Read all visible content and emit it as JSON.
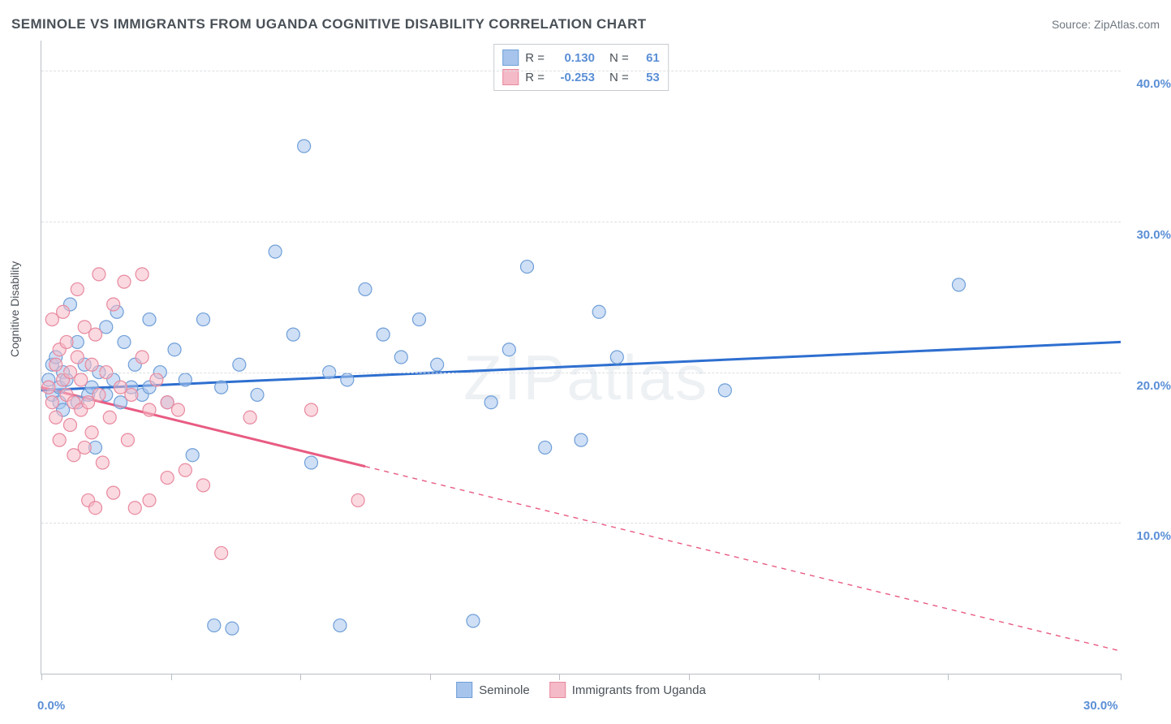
{
  "header": {
    "title": "SEMINOLE VS IMMIGRANTS FROM UGANDA COGNITIVE DISABILITY CORRELATION CHART",
    "source_label": "Source:",
    "source_name": "ZipAtlas.com"
  },
  "watermark": "ZIPatlas",
  "chart": {
    "type": "scatter",
    "ylabel": "Cognitive Disability",
    "xlim": [
      0,
      30
    ],
    "ylim": [
      0,
      42
    ],
    "xticks": [
      0,
      3.6,
      7.2,
      10.8,
      14.4,
      18.0,
      21.6,
      25.2,
      30
    ],
    "xtick_labels_shown": {
      "0": "0.0%",
      "30": "30.0%"
    },
    "yticks": [
      10,
      20,
      30,
      40
    ],
    "ytick_labels": [
      "10.0%",
      "20.0%",
      "30.0%",
      "40.0%"
    ],
    "grid_color": "#dcdfe3",
    "axis_color": "#b9bec4",
    "background_color": "#ffffff",
    "marker_radius": 8,
    "marker_opacity": 0.55,
    "series": [
      {
        "name": "Seminole",
        "color_fill": "#a7c5ec",
        "color_stroke": "#6f9fd8",
        "line_color": "#2e6fd0",
        "R": "0.130",
        "N": "61",
        "trend": {
          "x1": 0,
          "y1": 18.8,
          "x2": 30,
          "y2": 22.0,
          "solid_until_x": 30
        },
        "points": [
          [
            0.2,
            19.5
          ],
          [
            0.3,
            20.5
          ],
          [
            0.3,
            18.5
          ],
          [
            0.4,
            21.0
          ],
          [
            0.5,
            19.0
          ],
          [
            0.5,
            18.0
          ],
          [
            0.6,
            20.0
          ],
          [
            0.6,
            17.5
          ],
          [
            0.7,
            19.5
          ],
          [
            0.8,
            24.5
          ],
          [
            1.0,
            22.0
          ],
          [
            1.0,
            18.0
          ],
          [
            1.2,
            20.5
          ],
          [
            1.3,
            18.5
          ],
          [
            1.4,
            19.0
          ],
          [
            1.5,
            15.0
          ],
          [
            1.6,
            20.0
          ],
          [
            1.8,
            23.0
          ],
          [
            1.8,
            18.5
          ],
          [
            2.0,
            19.5
          ],
          [
            2.1,
            24.0
          ],
          [
            2.2,
            18.0
          ],
          [
            2.3,
            22.0
          ],
          [
            2.5,
            19.0
          ],
          [
            2.6,
            20.5
          ],
          [
            2.8,
            18.5
          ],
          [
            3.0,
            23.5
          ],
          [
            3.0,
            19.0
          ],
          [
            3.3,
            20.0
          ],
          [
            3.5,
            18.0
          ],
          [
            3.7,
            21.5
          ],
          [
            4.0,
            19.5
          ],
          [
            4.2,
            14.5
          ],
          [
            4.5,
            23.5
          ],
          [
            4.8,
            3.2
          ],
          [
            5.0,
            19.0
          ],
          [
            5.3,
            3.0
          ],
          [
            5.5,
            20.5
          ],
          [
            6.0,
            18.5
          ],
          [
            6.5,
            28.0
          ],
          [
            7.0,
            22.5
          ],
          [
            7.3,
            35.0
          ],
          [
            7.5,
            14.0
          ],
          [
            8.0,
            20.0
          ],
          [
            8.3,
            3.2
          ],
          [
            8.5,
            19.5
          ],
          [
            9.0,
            25.5
          ],
          [
            9.5,
            22.5
          ],
          [
            10.0,
            21.0
          ],
          [
            10.5,
            23.5
          ],
          [
            11.0,
            20.5
          ],
          [
            12.0,
            3.5
          ],
          [
            12.5,
            18.0
          ],
          [
            13.0,
            21.5
          ],
          [
            13.5,
            27.0
          ],
          [
            14.0,
            15.0
          ],
          [
            15.0,
            15.5
          ],
          [
            15.5,
            24.0
          ],
          [
            16.0,
            21.0
          ],
          [
            19.0,
            18.8
          ],
          [
            25.5,
            25.8
          ]
        ]
      },
      {
        "name": "Immigrants from Uganda",
        "color_fill": "#f5bac7",
        "color_stroke": "#e8899f",
        "line_color": "#e85b82",
        "R": "-0.253",
        "N": "53",
        "trend": {
          "x1": 0,
          "y1": 19.0,
          "x2": 30,
          "y2": 1.5,
          "solid_until_x": 9
        },
        "points": [
          [
            0.2,
            19.0
          ],
          [
            0.3,
            23.5
          ],
          [
            0.3,
            18.0
          ],
          [
            0.4,
            20.5
          ],
          [
            0.4,
            17.0
          ],
          [
            0.5,
            21.5
          ],
          [
            0.5,
            15.5
          ],
          [
            0.6,
            19.5
          ],
          [
            0.6,
            24.0
          ],
          [
            0.7,
            18.5
          ],
          [
            0.7,
            22.0
          ],
          [
            0.8,
            16.5
          ],
          [
            0.8,
            20.0
          ],
          [
            0.9,
            18.0
          ],
          [
            0.9,
            14.5
          ],
          [
            1.0,
            21.0
          ],
          [
            1.0,
            25.5
          ],
          [
            1.1,
            17.5
          ],
          [
            1.1,
            19.5
          ],
          [
            1.2,
            15.0
          ],
          [
            1.2,
            23.0
          ],
          [
            1.3,
            18.0
          ],
          [
            1.3,
            11.5
          ],
          [
            1.4,
            20.5
          ],
          [
            1.4,
            16.0
          ],
          [
            1.5,
            11.0
          ],
          [
            1.5,
            22.5
          ],
          [
            1.6,
            26.5
          ],
          [
            1.6,
            18.5
          ],
          [
            1.7,
            14.0
          ],
          [
            1.8,
            20.0
          ],
          [
            1.9,
            17.0
          ],
          [
            2.0,
            24.5
          ],
          [
            2.0,
            12.0
          ],
          [
            2.2,
            19.0
          ],
          [
            2.3,
            26.0
          ],
          [
            2.4,
            15.5
          ],
          [
            2.5,
            18.5
          ],
          [
            2.6,
            11.0
          ],
          [
            2.8,
            21.0
          ],
          [
            2.8,
            26.5
          ],
          [
            3.0,
            17.5
          ],
          [
            3.0,
            11.5
          ],
          [
            3.2,
            19.5
          ],
          [
            3.5,
            13.0
          ],
          [
            3.5,
            18.0
          ],
          [
            3.8,
            17.5
          ],
          [
            4.0,
            13.5
          ],
          [
            4.5,
            12.5
          ],
          [
            5.0,
            8.0
          ],
          [
            5.8,
            17.0
          ],
          [
            7.5,
            17.5
          ],
          [
            8.8,
            11.5
          ]
        ]
      }
    ]
  },
  "legend_top": {
    "r_label": "R  =",
    "n_label": "N  ="
  }
}
